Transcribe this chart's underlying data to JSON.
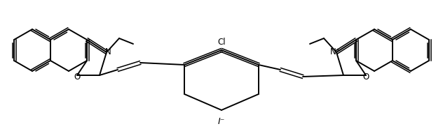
{
  "background_color": "#ffffff",
  "line_color": "#000000",
  "line_width": 1.4,
  "figsize": [
    6.32,
    1.88
  ],
  "dpi": 100,
  "labels": {
    "N_left": "N",
    "N_right": "N⁺",
    "O_left": "O",
    "O_right": "O",
    "Cl": "Cl",
    "I": "I⁻"
  },
  "label_fontsize": 8.5,
  "i_fontsize": 9
}
